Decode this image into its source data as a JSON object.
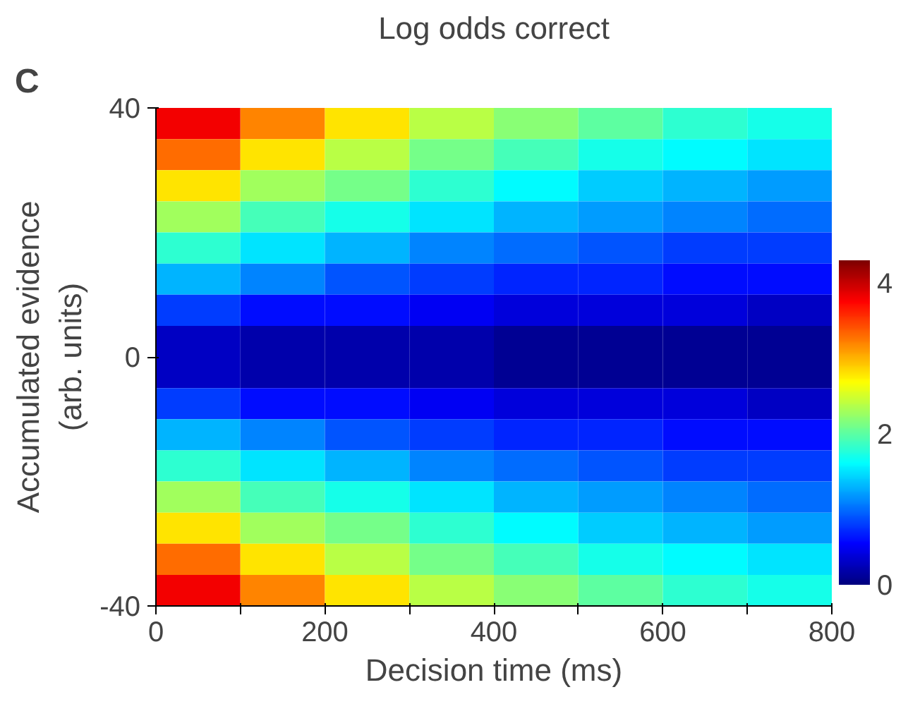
{
  "chart_data": {
    "type": "heatmap",
    "title": "Log odds correct",
    "xlabel": "Decision time (ms)",
    "ylabel": "Accumulated evidence\n(arb. units)",
    "annotations": [
      "C"
    ],
    "x": [
      50,
      150,
      250,
      350,
      450,
      550,
      650,
      750
    ],
    "y": [
      37.5,
      32.5,
      27.5,
      22.5,
      17.5,
      12.5,
      7.5,
      2.5,
      -2.5,
      -7.5,
      -12.5,
      -17.5,
      -22.5,
      -27.5,
      -32.5,
      -37.5
    ],
    "cells": [
      [
        3.8,
        3.2,
        2.8,
        2.4,
        2.2,
        2.0,
        1.8,
        1.7
      ],
      [
        3.3,
        2.8,
        2.4,
        2.1,
        1.9,
        1.7,
        1.6,
        1.5
      ],
      [
        2.8,
        2.3,
        2.1,
        1.8,
        1.6,
        1.4,
        1.3,
        1.2
      ],
      [
        2.3,
        1.9,
        1.7,
        1.5,
        1.3,
        1.2,
        1.1,
        1.0
      ],
      [
        1.8,
        1.5,
        1.3,
        1.1,
        1.0,
        0.9,
        0.8,
        0.8
      ],
      [
        1.3,
        1.1,
        0.9,
        0.8,
        0.7,
        0.7,
        0.6,
        0.6
      ],
      [
        0.8,
        0.6,
        0.6,
        0.5,
        0.4,
        0.4,
        0.4,
        0.3
      ],
      [
        0.3,
        0.2,
        0.2,
        0.2,
        0.1,
        0.1,
        0.1,
        0.1
      ],
      [
        0.3,
        0.2,
        0.2,
        0.2,
        0.1,
        0.1,
        0.1,
        0.1
      ],
      [
        0.8,
        0.6,
        0.6,
        0.5,
        0.4,
        0.4,
        0.4,
        0.3
      ],
      [
        1.3,
        1.1,
        0.9,
        0.8,
        0.7,
        0.7,
        0.6,
        0.6
      ],
      [
        1.8,
        1.5,
        1.3,
        1.1,
        1.0,
        0.9,
        0.8,
        0.8
      ],
      [
        2.3,
        1.9,
        1.7,
        1.5,
        1.3,
        1.2,
        1.1,
        1.0
      ],
      [
        2.8,
        2.3,
        2.1,
        1.8,
        1.6,
        1.4,
        1.3,
        1.2
      ],
      [
        3.3,
        2.8,
        2.4,
        2.1,
        1.9,
        1.7,
        1.6,
        1.5
      ],
      [
        3.8,
        3.2,
        2.8,
        2.4,
        2.2,
        2.0,
        1.8,
        1.7
      ]
    ],
    "xlim": [
      0,
      800
    ],
    "xticks": [
      0,
      {
        "value": 100,
        "label": null
      },
      200,
      {
        "value": 300,
        "label": null
      },
      400,
      {
        "value": 500,
        "label": null
      },
      600,
      {
        "value": 700,
        "label": null
      },
      800
    ],
    "ylim": [
      -40,
      40
    ],
    "yticks": [
      -40,
      0,
      40
    ],
    "clim": [
      0,
      4.3
    ],
    "cticks": [
      0,
      2,
      4
    ]
  }
}
